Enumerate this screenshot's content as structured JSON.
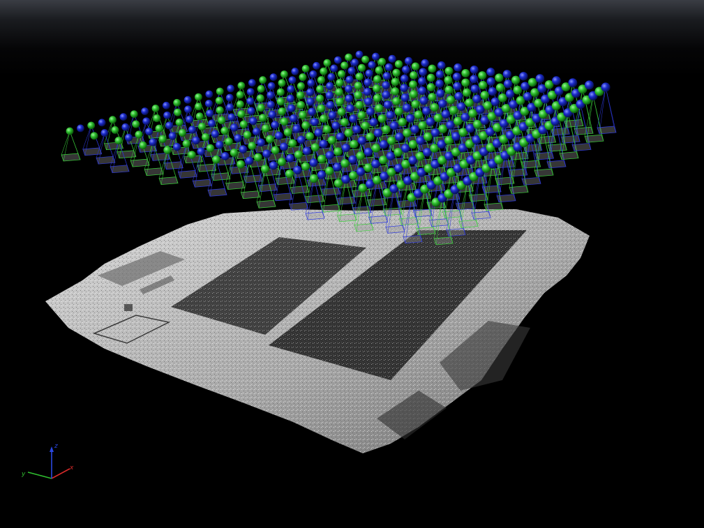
{
  "viewport": {
    "background_top": "#3a3d44",
    "background_bottom": "#000000"
  },
  "camera_overlay": {
    "grid_columns": 28,
    "grid_rows": 16,
    "sphere_colors": [
      "#2fbf2f",
      "#1c2ccc"
    ],
    "frustum_colors": [
      "#39d039",
      "#2e3ae0"
    ]
  },
  "axes": {
    "x_label": "x",
    "y_label": "y",
    "z_label": "z",
    "x_color": "#d62a2a",
    "y_color": "#2fbf2f",
    "z_color": "#2a48e0"
  }
}
